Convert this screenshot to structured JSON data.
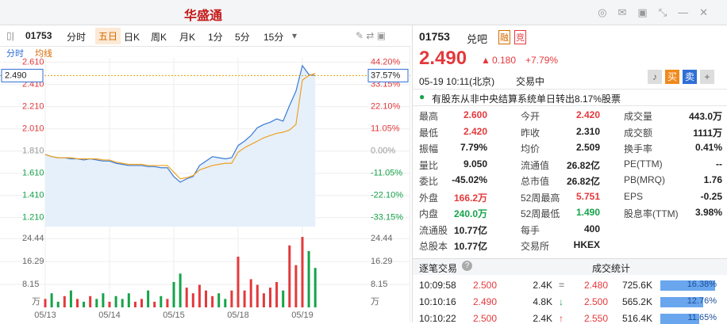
{
  "header": {
    "brand": "华盛通"
  },
  "toolbar": {
    "code": "01753",
    "tabs": [
      "分时",
      "五日",
      "日K",
      "周K",
      "月K",
      "1分",
      "5分",
      "15分"
    ],
    "active": 1
  },
  "chart_tabs": [
    "分时",
    "均线"
  ],
  "chart_data": {
    "type": "line",
    "x": [
      0,
      1,
      2,
      3,
      4,
      5,
      6,
      7,
      8,
      9,
      10,
      11,
      12,
      13,
      14,
      15,
      16,
      17,
      18,
      19,
      20,
      21,
      22,
      23,
      24,
      25,
      26,
      27,
      28,
      29,
      30,
      31,
      32,
      33,
      34,
      35,
      36,
      37,
      38,
      39,
      40,
      41,
      42
    ],
    "xlim": [
      0,
      50
    ],
    "days": [
      {
        "value": 0,
        "label": "05/13"
      },
      {
        "value": 10,
        "label": "05/14"
      },
      {
        "value": 20,
        "label": "05/15"
      },
      {
        "value": 30,
        "label": "05/18"
      },
      {
        "value": 40,
        "label": "05/19"
      }
    ],
    "series": [
      {
        "name": "分时",
        "color": "#3a7bd5",
        "values": [
          1.78,
          1.76,
          1.75,
          1.75,
          1.74,
          1.74,
          1.73,
          1.74,
          1.73,
          1.72,
          1.72,
          1.7,
          1.69,
          1.68,
          1.68,
          1.68,
          1.67,
          1.67,
          1.66,
          1.66,
          1.58,
          1.53,
          1.56,
          1.58,
          1.68,
          1.72,
          1.76,
          1.75,
          1.74,
          1.75,
          1.86,
          1.9,
          1.95,
          2.02,
          2.05,
          2.07,
          2.1,
          2.08,
          2.22,
          2.35,
          2.58,
          2.5,
          2.49
        ]
      },
      {
        "name": "均线",
        "color": "#f0a020",
        "values": [
          1.78,
          1.76,
          1.75,
          1.75,
          1.75,
          1.74,
          1.74,
          1.74,
          1.74,
          1.73,
          1.73,
          1.71,
          1.7,
          1.69,
          1.69,
          1.69,
          1.68,
          1.68,
          1.68,
          1.68,
          1.62,
          1.56,
          1.57,
          1.59,
          1.64,
          1.66,
          1.68,
          1.69,
          1.7,
          1.7,
          1.8,
          1.84,
          1.87,
          1.9,
          1.93,
          1.95,
          1.97,
          1.98,
          2.0,
          2.05,
          2.45,
          2.49,
          2.51
        ]
      }
    ],
    "ylim": [
      1.13,
      2.65
    ],
    "yticks": [
      {
        "value": 2.61,
        "label": "2.610"
      },
      {
        "value": 2.41,
        "label": "2.410"
      },
      {
        "value": 2.21,
        "label": "2.210"
      },
      {
        "value": 2.01,
        "label": "2.010"
      },
      {
        "value": 1.81,
        "label": "1.810"
      },
      {
        "value": 1.61,
        "label": "1.610"
      },
      {
        "value": 1.41,
        "label": "1.410"
      },
      {
        "value": 1.21,
        "label": "1.210"
      }
    ],
    "y2lim": [
      -37.57,
      46.41
    ],
    "y2ticks": [
      {
        "value": 44.2,
        "label": "44.20%"
      },
      {
        "value": 33.15,
        "label": "33.15%"
      },
      {
        "value": 22.1,
        "label": "22.10%"
      },
      {
        "value": 11.05,
        "label": "11.05%"
      },
      {
        "value": 0,
        "label": "0.00%"
      },
      {
        "value": -11.05,
        "label": "-11.05%"
      },
      {
        "value": -22.1,
        "label": "-22.10%"
      },
      {
        "value": -33.15,
        "label": "-33.15%"
      }
    ],
    "current": {
      "value": 2.49,
      "label": "2.490",
      "pct_label": "37.57%"
    },
    "volume": {
      "values": [
        3,
        5,
        2,
        4,
        6,
        3,
        2,
        4,
        3,
        5,
        2,
        4,
        3,
        5,
        2,
        3,
        6,
        2,
        4,
        3,
        9,
        12,
        7,
        5,
        8,
        6,
        4,
        5,
        3,
        6,
        18,
        6,
        10,
        8,
        5,
        7,
        9,
        6,
        22,
        15,
        25,
        20,
        14
      ],
      "ylim": [
        0,
        27
      ],
      "yticks": [
        {
          "value": 24.44,
          "label": "24.44"
        },
        {
          "value": 16.29,
          "label": "16.29"
        },
        {
          "value": 8.15,
          "label": "8.15"
        }
      ],
      "unit": "万",
      "up_color": "#e4393c",
      "down_color": "#16a34a"
    }
  },
  "quote": {
    "code": "01753",
    "name": "兑吧",
    "badges": [
      "融",
      "竞"
    ],
    "price": "2.490",
    "change": "0.180",
    "pct": "+7.79%",
    "time": "05-19  10:11(北京)",
    "status": "交易中",
    "buy": "买",
    "sell": "卖",
    "notice": "有股东从非中央结算系统单日转出8.17%股票",
    "stats": [
      [
        [
          "最高",
          "2.600",
          "#e4393c"
        ],
        [
          "今开",
          "2.420",
          "#e4393c"
        ],
        [
          "成交量",
          "443.0万",
          "#222"
        ]
      ],
      [
        [
          "最低",
          "2.420",
          "#e4393c"
        ],
        [
          "昨收",
          "2.310",
          "#222"
        ],
        [
          "成交额",
          "1111万",
          "#222"
        ]
      ],
      [
        [
          "振幅",
          "7.79%",
          "#222"
        ],
        [
          "均价",
          "2.509",
          "#222"
        ],
        [
          "换手率",
          "0.41%",
          "#222"
        ]
      ],
      [
        [
          "量比",
          "9.050",
          "#222"
        ],
        [
          "流通值",
          "26.82亿",
          "#222"
        ],
        [
          "PE(TTM)",
          "--",
          "#222"
        ]
      ],
      [
        [
          "委比",
          "-45.02%",
          "#222"
        ],
        [
          "总市值",
          "26.82亿",
          "#222"
        ],
        [
          "PB(MRQ)",
          "1.76",
          "#222"
        ]
      ],
      [
        [
          "外盘",
          "166.2万",
          "#e4393c"
        ],
        [
          "52周最高",
          "5.751",
          "#e4393c"
        ],
        [
          "EPS",
          "-0.25",
          "#222"
        ]
      ],
      [
        [
          "内盘",
          "240.0万",
          "#16a34a"
        ],
        [
          "52周最低",
          "1.490",
          "#16a34a"
        ],
        [
          "股息率(TTM)",
          "3.98%",
          "#222"
        ]
      ],
      [
        [
          "流通股",
          "10.77亿",
          "#222"
        ],
        [
          "每手",
          "400",
          "#222"
        ]
      ],
      [
        [
          "总股本",
          "10.77亿",
          "#222"
        ],
        [
          "交易所",
          "HKEX",
          "#222"
        ]
      ]
    ]
  },
  "trades": {
    "title": "逐笔交易",
    "rows": [
      [
        "10:09:58",
        "2.500",
        "2.4K",
        "="
      ],
      [
        "10:10:16",
        "2.490",
        "4.8K",
        "↓"
      ],
      [
        "10:10:22",
        "2.500",
        "2.4K",
        "↑"
      ]
    ]
  },
  "deals": {
    "title": "成交统计",
    "rows": [
      [
        "2.480",
        "725.6K",
        16.38,
        "16.38%"
      ],
      [
        "2.500",
        "565.2K",
        12.76,
        "12.76%"
      ],
      [
        "2.550",
        "516.4K",
        11.65,
        "11.65%"
      ]
    ]
  }
}
